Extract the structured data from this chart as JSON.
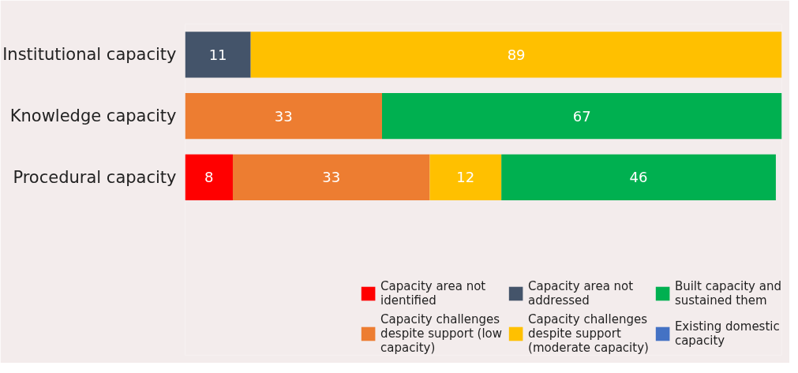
{
  "chart_data": {
    "type": "bar",
    "orientation": "horizontal",
    "stacked": true,
    "categories": [
      "Institutional capacity",
      "Knowledge capacity",
      "Procedural capacity"
    ],
    "series": [
      {
        "name": "Capacity area not identified",
        "color": "#ff0000",
        "values": [
          null,
          null,
          8
        ]
      },
      {
        "name": "Capacity challenges despite support (low capacity)",
        "color": "#ed7d31",
        "values": [
          null,
          33,
          33
        ]
      },
      {
        "name": "Capacity area not addressed",
        "color": "#44546a",
        "values": [
          11,
          null,
          null
        ]
      },
      {
        "name": "Capacity challenges despite support (moderate capacity)",
        "color": "#ffc000",
        "values": [
          89,
          null,
          12
        ]
      },
      {
        "name": "Built capacity and sustained them",
        "color": "#00b050",
        "values": [
          null,
          67,
          46
        ]
      },
      {
        "name": "Existing domestic capacity",
        "color": "#4472c4",
        "values": [
          null,
          null,
          null
        ]
      }
    ],
    "xlim": [
      0,
      100
    ],
    "tick_labels": "y",
    "data_labels": true,
    "legend": "bottom",
    "grid": false
  }
}
